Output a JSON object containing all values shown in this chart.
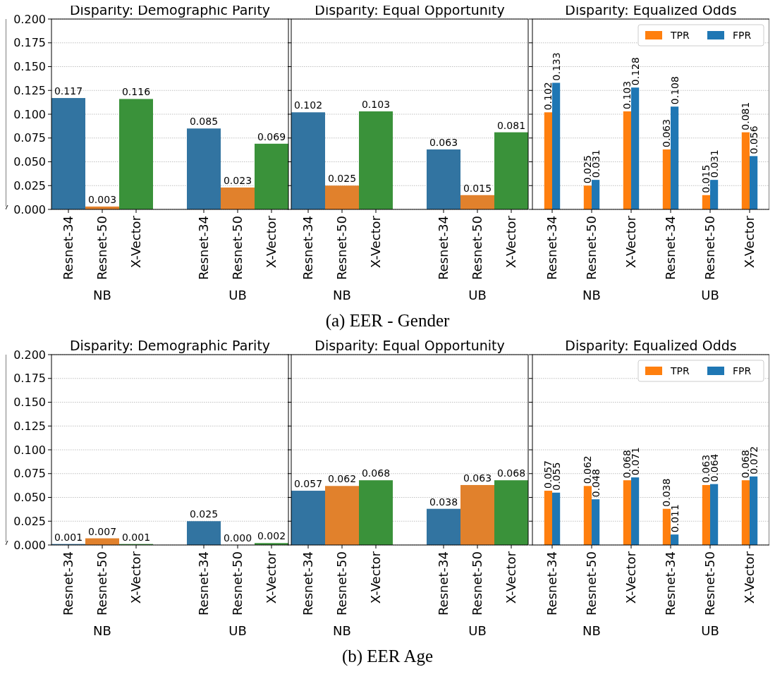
{
  "chart_data": [
    {
      "type": "bar",
      "title": "Disparity: Demographic Parity",
      "categories": [
        "Resnet-34",
        "Resnet-50",
        "X-Vector",
        null,
        "Resnet-34",
        "Resnet-50",
        "X-Vector"
      ],
      "values": [
        0.117,
        0.003,
        0.116,
        null,
        0.085,
        0.023,
        0.069
      ],
      "colors": [
        "#3274a1",
        "#e1812c",
        "#3a923a",
        null,
        "#3274a1",
        "#e1812c",
        "#3a923a"
      ],
      "value_labels": [
        "0.117",
        "0.003",
        "0.116",
        null,
        "0.085",
        "0.023",
        "0.069"
      ],
      "ylim": [
        0,
        0.2
      ],
      "yticks": [
        {
          "value": 0,
          "label": "0.000"
        },
        0.025,
        {
          "value": 0.05,
          "label": "0.050"
        },
        0.075,
        {
          "value": 0.1,
          "label": "0.100"
        },
        0.125,
        {
          "value": 0.15,
          "label": "0.150"
        },
        0.175,
        {
          "value": 0.2,
          "label": "0.200"
        }
      ],
      "grid": "y",
      "annotations": [
        "NB",
        "UB",
        "(a) EER - Gender"
      ]
    },
    {
      "type": "bar",
      "title": "Disparity: Equal Opportunity",
      "categories": [
        "Resnet-34",
        "Resnet-50",
        "X-Vector",
        null,
        "Resnet-34",
        "Resnet-50",
        "X-Vector"
      ],
      "values": [
        0.102,
        0.025,
        0.103,
        null,
        0.063,
        0.015,
        0.081
      ],
      "colors": [
        "#3274a1",
        "#e1812c",
        "#3a923a",
        null,
        "#3274a1",
        "#e1812c",
        "#3a923a"
      ],
      "value_labels": [
        "0.102",
        "0.025",
        "0.103",
        null,
        "0.063",
        "0.015",
        "0.081"
      ],
      "ylim": [
        0,
        0.2
      ],
      "yticks": [
        0,
        0.025,
        0.05,
        0.075,
        0.1,
        0.125,
        0.15,
        0.175,
        0.2
      ],
      "grid": "y",
      "tick_labels": "x",
      "annotations": [
        "NB",
        "UB"
      ]
    },
    {
      "type": "bar",
      "title": "Disparity: Equalized Odds",
      "categories": [
        "Resnet-34",
        "Resnet-50",
        "X-Vector",
        "Resnet-34",
        "Resnet-50",
        "X-Vector"
      ],
      "series": [
        {
          "name": "TPR",
          "color": "#ff7f0e",
          "values": [
            0.102,
            0.025,
            0.103,
            0.063,
            0.015,
            0.081
          ],
          "value_labels": [
            "0.102",
            "0.025",
            "0.103",
            "0.063",
            "0.015",
            "0.081"
          ]
        },
        {
          "name": "FPR",
          "color": "#1f77b4",
          "values": [
            0.133,
            0.031,
            0.128,
            0.108,
            0.031,
            0.056
          ],
          "value_labels": [
            "0.133",
            "0.031",
            "0.128",
            "0.108",
            "0.031",
            "0.056"
          ]
        }
      ],
      "ylim": [
        0,
        0.2
      ],
      "yticks": [
        0,
        0.025,
        0.05,
        0.075,
        0.1,
        0.125,
        0.15,
        0.175,
        0.2
      ],
      "grid": "y",
      "tick_labels": "x",
      "legend": "top right",
      "annotations": [
        "NB",
        "UB"
      ]
    },
    {
      "type": "bar",
      "title": "Disparity: Demographic Parity",
      "categories": [
        "Resnet-34",
        "Resnet-50",
        "X-Vector",
        null,
        "Resnet-34",
        "Resnet-50",
        "X-Vector"
      ],
      "values": [
        0.001,
        0.007,
        0.001,
        null,
        0.025,
        0.0,
        0.002
      ],
      "colors": [
        "#3274a1",
        "#e1812c",
        "#3a923a",
        null,
        "#3274a1",
        "#e1812c",
        "#3a923a"
      ],
      "value_labels": [
        "0.001",
        "0.007",
        "0.001",
        null,
        "0.025",
        "0.000",
        "0.002"
      ],
      "ylim": [
        0,
        0.2
      ],
      "yticks": [
        {
          "value": 0,
          "label": "0.000"
        },
        0.025,
        {
          "value": 0.05,
          "label": "0.050"
        },
        0.075,
        {
          "value": 0.1,
          "label": "0.100"
        },
        0.125,
        {
          "value": 0.15,
          "label": "0.150"
        },
        0.175,
        {
          "value": 0.2,
          "label": "0.200"
        }
      ],
      "grid": "y",
      "annotations": [
        "NB",
        "UB",
        "(b) EER Age"
      ]
    },
    {
      "type": "bar",
      "title": "Disparity: Equal Opportunity",
      "categories": [
        "Resnet-34",
        "Resnet-50",
        "X-Vector",
        null,
        "Resnet-34",
        "Resnet-50",
        "X-Vector"
      ],
      "values": [
        0.057,
        0.062,
        0.068,
        null,
        0.038,
        0.063,
        0.068
      ],
      "colors": [
        "#3274a1",
        "#e1812c",
        "#3a923a",
        null,
        "#3274a1",
        "#e1812c",
        "#3a923a"
      ],
      "value_labels": [
        "0.057",
        "0.062",
        "0.068",
        null,
        "0.038",
        "0.063",
        "0.068"
      ],
      "ylim": [
        0,
        0.2
      ],
      "yticks": [
        0,
        0.025,
        0.05,
        0.075,
        0.1,
        0.125,
        0.15,
        0.175,
        0.2
      ],
      "grid": "y",
      "tick_labels": "x",
      "annotations": [
        "NB",
        "UB"
      ]
    },
    {
      "type": "bar",
      "title": "Disparity: Equalized Odds",
      "categories": [
        "Resnet-34",
        "Resnet-50",
        "X-Vector",
        "Resnet-34",
        "Resnet-50",
        "X-Vector"
      ],
      "series": [
        {
          "name": "TPR",
          "color": "#ff7f0e",
          "values": [
            0.057,
            0.062,
            0.068,
            0.038,
            0.063,
            0.068
          ],
          "value_labels": [
            "0.057",
            "0.062",
            "0.068",
            "0.038",
            "0.063",
            "0.068"
          ]
        },
        {
          "name": "FPR",
          "color": "#1f77b4",
          "values": [
            0.055,
            0.048,
            0.071,
            0.011,
            0.064,
            0.072
          ],
          "value_labels": [
            "0.055",
            "0.048",
            "0.071",
            "0.011",
            "0.064",
            "0.072"
          ]
        }
      ],
      "ylim": [
        0,
        0.2
      ],
      "yticks": [
        0,
        0.025,
        0.05,
        0.075,
        0.1,
        0.125,
        0.15,
        0.175,
        0.2
      ],
      "grid": "y",
      "tick_labels": "x",
      "legend": "top right",
      "annotations": [
        "NB",
        "UB"
      ]
    }
  ]
}
